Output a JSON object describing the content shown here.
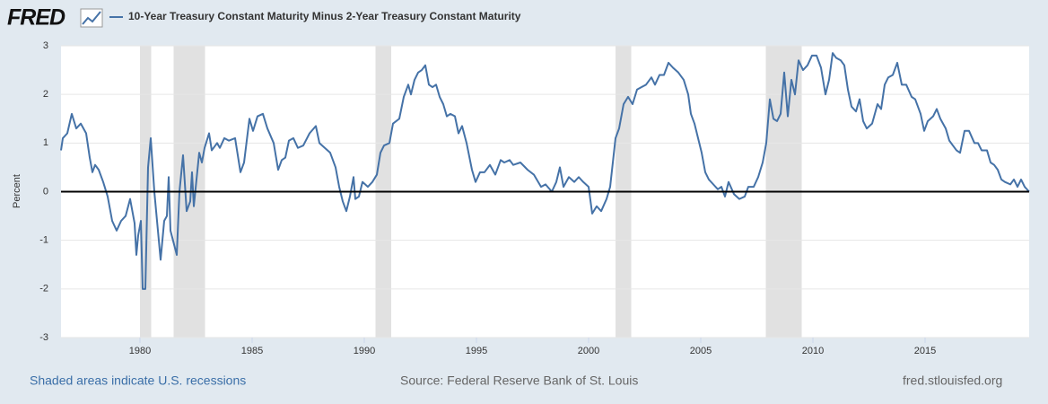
{
  "logo": "FRED",
  "footer": {
    "left": "Shaded areas indicate U.S. recessions",
    "center": "Source: Federal Reserve Bank of St. Louis",
    "right": "fred.stlouisfed.org"
  },
  "chart_data": {
    "type": "line",
    "ylabel": "Percent",
    "xlim": [
      1976.48,
      2019.64
    ],
    "xticks": [
      1980,
      1985,
      1990,
      1995,
      2000,
      2005,
      2010,
      2015
    ],
    "ylim": [
      -3,
      3
    ],
    "yticks": [
      -3,
      -2,
      -1,
      0,
      1,
      2,
      3
    ],
    "grid": true,
    "hline": 0,
    "recessions": [
      [
        1980.0,
        1980.5
      ],
      [
        1981.5,
        1982.9
      ],
      [
        1990.5,
        1991.2
      ],
      [
        2001.2,
        2001.9
      ],
      [
        2007.9,
        2009.5
      ]
    ],
    "x": [
      1976.48,
      1976.56,
      1976.76,
      1976.96,
      1977.16,
      1977.36,
      1977.6,
      1977.76,
      1977.88,
      1978.0,
      1978.16,
      1978.36,
      1978.56,
      1978.76,
      1978.96,
      1979.16,
      1979.36,
      1979.56,
      1979.76,
      1979.84,
      1979.92,
      1980.04,
      1980.12,
      1980.24,
      1980.36,
      1980.48,
      1980.64,
      1980.92,
      1981.08,
      1981.2,
      1981.28,
      1981.36,
      1981.64,
      1981.76,
      1981.92,
      1982.08,
      1982.24,
      1982.32,
      1982.4,
      1982.64,
      1982.76,
      1982.88,
      1983.08,
      1983.2,
      1983.44,
      1983.56,
      1983.76,
      1983.96,
      1984.24,
      1984.48,
      1984.64,
      1984.88,
      1985.04,
      1985.24,
      1985.48,
      1985.68,
      1985.96,
      1986.16,
      1986.32,
      1986.48,
      1986.64,
      1986.84,
      1987.04,
      1987.28,
      1987.56,
      1987.84,
      1988.0,
      1988.24,
      1988.48,
      1988.72,
      1988.88,
      1989.04,
      1989.2,
      1989.36,
      1989.52,
      1989.6,
      1989.76,
      1989.92,
      1990.16,
      1990.36,
      1990.56,
      1990.72,
      1990.88,
      1991.12,
      1991.28,
      1991.56,
      1991.76,
      1991.96,
      1992.08,
      1992.24,
      1992.4,
      1992.56,
      1992.72,
      1992.88,
      1993.04,
      1993.2,
      1993.36,
      1993.52,
      1993.68,
      1993.84,
      1994.04,
      1994.2,
      1994.36,
      1994.56,
      1994.8,
      1994.96,
      1995.16,
      1995.36,
      1995.6,
      1995.84,
      1996.08,
      1996.24,
      1996.48,
      1996.64,
      1996.96,
      1997.28,
      1997.56,
      1997.88,
      1998.08,
      1998.36,
      1998.56,
      1998.72,
      1998.88,
      1999.12,
      1999.36,
      1999.56,
      1999.76,
      2000.0,
      2000.16,
      2000.36,
      2000.56,
      2000.8,
      2000.96,
      2001.08,
      2001.2,
      2001.36,
      2001.56,
      2001.76,
      2001.96,
      2002.16,
      2002.36,
      2002.56,
      2002.8,
      2002.96,
      2003.16,
      2003.36,
      2003.56,
      2003.76,
      2004.0,
      2004.24,
      2004.44,
      2004.56,
      2004.72,
      2004.88,
      2005.04,
      2005.2,
      2005.36,
      2005.56,
      2005.76,
      2005.92,
      2006.08,
      2006.24,
      2006.48,
      2006.72,
      2006.96,
      2007.12,
      2007.36,
      2007.56,
      2007.76,
      2007.92,
      2008.08,
      2008.24,
      2008.4,
      2008.56,
      2008.72,
      2008.88,
      2009.04,
      2009.2,
      2009.36,
      2009.56,
      2009.76,
      2009.96,
      2010.16,
      2010.36,
      2010.56,
      2010.72,
      2010.88,
      2011.04,
      2011.24,
      2011.4,
      2011.56,
      2011.72,
      2011.92,
      2012.08,
      2012.24,
      2012.4,
      2012.64,
      2012.88,
      2013.04,
      2013.2,
      2013.36,
      2013.56,
      2013.76,
      2013.96,
      2014.16,
      2014.4,
      2014.56,
      2014.8,
      2014.96,
      2015.12,
      2015.36,
      2015.52,
      2015.68,
      2015.92,
      2016.08,
      2016.24,
      2016.4,
      2016.56,
      2016.76,
      2016.96,
      2017.2,
      2017.36,
      2017.52,
      2017.76,
      2017.92,
      2018.08,
      2018.24,
      2018.4,
      2018.56,
      2018.8,
      2018.96,
      2019.12,
      2019.28,
      2019.44,
      2019.64
    ],
    "series": [
      {
        "name": "10-Year Treasury Constant Maturity Minus 2-Year Treasury Constant Maturity",
        "color": "#4572a7",
        "values": [
          0.85,
          1.1,
          1.2,
          1.6,
          1.3,
          1.4,
          1.2,
          0.7,
          0.4,
          0.55,
          0.45,
          0.2,
          -0.1,
          -0.6,
          -0.8,
          -0.6,
          -0.5,
          -0.15,
          -0.65,
          -1.3,
          -0.9,
          -0.6,
          -2.0,
          -2.0,
          0.5,
          1.1,
          0.0,
          -1.4,
          -0.6,
          -0.5,
          0.3,
          -0.8,
          -1.3,
          0.0,
          0.75,
          -0.4,
          -0.2,
          0.4,
          -0.3,
          0.8,
          0.6,
          0.9,
          1.2,
          0.85,
          1.0,
          0.9,
          1.1,
          1.05,
          1.1,
          0.4,
          0.6,
          1.5,
          1.25,
          1.55,
          1.6,
          1.3,
          1.0,
          0.45,
          0.65,
          0.7,
          1.05,
          1.1,
          0.9,
          0.95,
          1.2,
          1.35,
          1.0,
          0.9,
          0.8,
          0.5,
          0.1,
          -0.2,
          -0.4,
          -0.1,
          0.3,
          -0.15,
          -0.1,
          0.2,
          0.1,
          0.2,
          0.35,
          0.8,
          0.95,
          1.0,
          1.4,
          1.5,
          1.95,
          2.2,
          2.0,
          2.3,
          2.45,
          2.5,
          2.6,
          2.2,
          2.15,
          2.2,
          1.95,
          1.8,
          1.55,
          1.6,
          1.55,
          1.2,
          1.35,
          1.0,
          0.45,
          0.2,
          0.4,
          0.4,
          0.55,
          0.35,
          0.65,
          0.6,
          0.65,
          0.55,
          0.6,
          0.45,
          0.35,
          0.1,
          0.15,
          0.0,
          0.2,
          0.5,
          0.1,
          0.3,
          0.2,
          0.3,
          0.2,
          0.1,
          -0.45,
          -0.3,
          -0.4,
          -0.15,
          0.1,
          0.6,
          1.1,
          1.3,
          1.8,
          1.95,
          1.8,
          2.1,
          2.15,
          2.2,
          2.35,
          2.2,
          2.4,
          2.4,
          2.65,
          2.55,
          2.45,
          2.3,
          2.0,
          1.6,
          1.4,
          1.1,
          0.8,
          0.4,
          0.25,
          0.15,
          0.05,
          0.1,
          -0.1,
          0.2,
          -0.05,
          -0.15,
          -0.1,
          0.1,
          0.1,
          0.3,
          0.6,
          1.0,
          1.9,
          1.5,
          1.45,
          1.6,
          2.45,
          1.55,
          2.3,
          2.0,
          2.7,
          2.5,
          2.6,
          2.8,
          2.8,
          2.55,
          2.0,
          2.3,
          2.85,
          2.75,
          2.7,
          2.6,
          2.1,
          1.75,
          1.65,
          1.9,
          1.45,
          1.3,
          1.4,
          1.8,
          1.7,
          2.2,
          2.35,
          2.4,
          2.65,
          2.2,
          2.2,
          1.95,
          1.9,
          1.6,
          1.25,
          1.45,
          1.55,
          1.7,
          1.5,
          1.3,
          1.05,
          0.95,
          0.85,
          0.8,
          1.25,
          1.25,
          1.0,
          1.0,
          0.85,
          0.85,
          0.6,
          0.55,
          0.45,
          0.25,
          0.2,
          0.15,
          0.25,
          0.1,
          0.25,
          0.1,
          0.0
        ]
      }
    ]
  }
}
